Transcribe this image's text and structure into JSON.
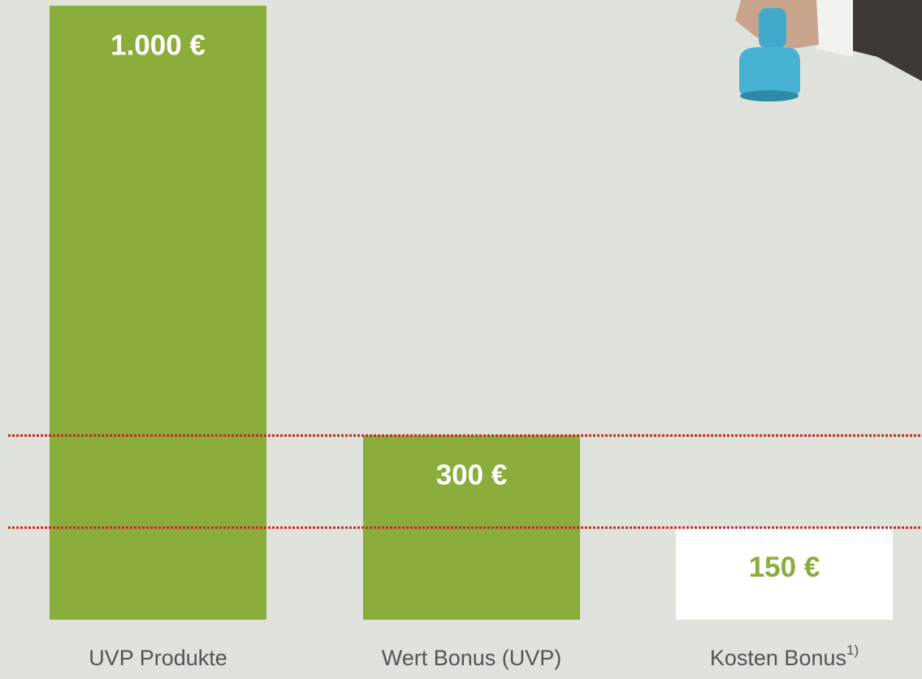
{
  "chart_data": {
    "type": "bar",
    "categories": [
      "UVP Produkte",
      "Wert Bonus (UVP)",
      "Kosten Bonus"
    ],
    "category_footnotes": [
      null,
      null,
      "1)"
    ],
    "values": [
      1000,
      300,
      150
    ],
    "value_labels": [
      "1.000 €",
      "300 €",
      "150 €"
    ],
    "colors": [
      "#8aad3b",
      "#8aad3b",
      "#ffffff"
    ],
    "label_colors": [
      "#ffffff",
      "#ffffff",
      "#8aad3b"
    ],
    "reference_lines": {
      "color": "#c8281e",
      "at": [
        1,
        2
      ]
    }
  }
}
